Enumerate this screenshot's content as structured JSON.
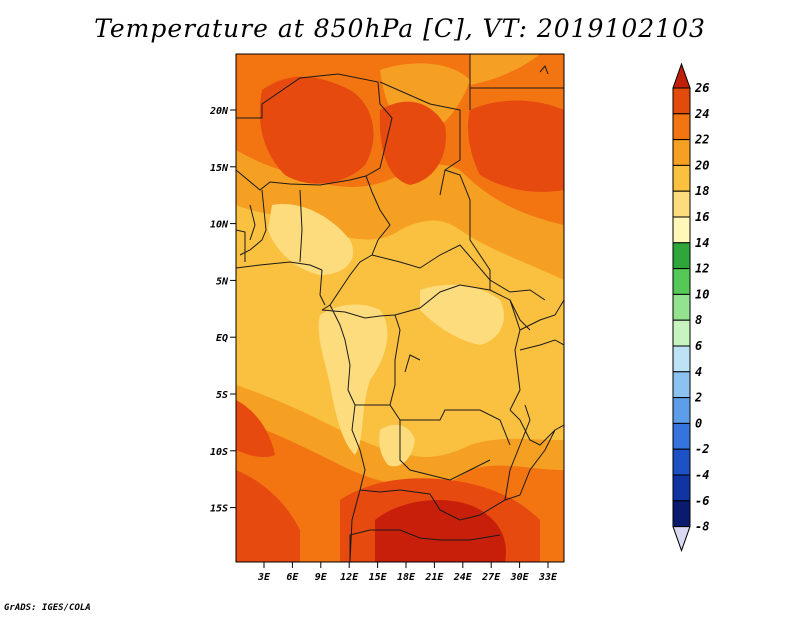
{
  "title": "Temperature at 850hPa [C], VT: 2019102103",
  "footer": "GrADS: IGES/COLA",
  "lat_labels": [
    "20N",
    "15N",
    "10N",
    "5N",
    "EQ",
    "5S",
    "10S",
    "15S"
  ],
  "lon_labels": [
    "3E",
    "6E",
    "9E",
    "12E",
    "15E",
    "18E",
    "21E",
    "24E",
    "27E",
    "30E",
    "33E"
  ],
  "colorbar": {
    "labels": [
      "26",
      "24",
      "22",
      "20",
      "18",
      "16",
      "14",
      "12",
      "10",
      "8",
      "6",
      "4",
      "2",
      "0",
      "-2",
      "-4",
      "-6",
      "-8"
    ],
    "colors": [
      "#c01f0a",
      "#e24b0c",
      "#f27512",
      "#f6a023",
      "#fac040",
      "#fddc7e",
      "#fff8b8",
      "#2ea63a",
      "#55c855",
      "#92e28e",
      "#c8f4c0",
      "#bde1f5",
      "#8cc2f0",
      "#5c9ee8",
      "#3574dd",
      "#1d52c4",
      "#1034a2",
      "#0a1a6e",
      "#d9d9f2"
    ]
  },
  "map_colors": {
    "c24": "#e64a0e",
    "c22": "#f27512",
    "c20": "#f6a023",
    "c18": "#fac040",
    "c16": "#fddc7e",
    "c26": "#c81f0a",
    "border": "#1a1a1a"
  }
}
